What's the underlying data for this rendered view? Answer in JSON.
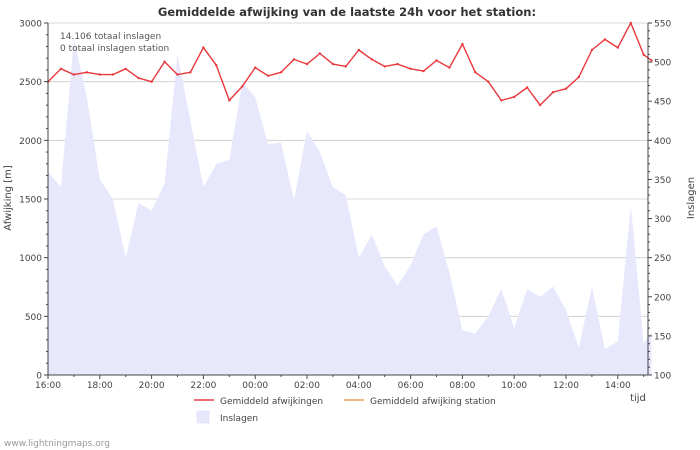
{
  "chart_data": {
    "type": "line",
    "title": "Gemiddelde afwijking van de laatste 24h voor het station:",
    "ylabel": "Afwijking  [m]",
    "y2label": "Inslagen",
    "xlabel": "tijd",
    "ylim": [
      0,
      3000
    ],
    "y2lim": [
      100,
      550
    ],
    "yticks": [
      0,
      500,
      1000,
      1500,
      2000,
      2500,
      3000
    ],
    "y2ticks": [
      100,
      150,
      200,
      250,
      300,
      350,
      400,
      450,
      500,
      550
    ],
    "xticks": [
      "16:00",
      "18:00",
      "20:00",
      "22:00",
      "00:00",
      "02:00",
      "04:00",
      "06:00",
      "08:00",
      "10:00",
      "12:00",
      "14:00"
    ],
    "x_hours_range": [
      0,
      23.3
    ],
    "annotations": [
      "14.106 totaal inslagen",
      "0 totaal inslagen station"
    ],
    "legend": {
      "afwijkingen": "Gemiddeld afwijkingen",
      "station": "Gemiddeld afwijking station",
      "inslagen": "Inslagen"
    },
    "colors": {
      "afwijkingen": "#e8383d",
      "station": "#f0a050",
      "inslagen_fill": "#e8e8fc",
      "grid": "#cccccc",
      "axis": "#444444"
    },
    "series": [
      {
        "name": "Gemiddeld afwijkingen",
        "axis": "left",
        "x": [
          0,
          0.5,
          1,
          1.5,
          2,
          2.5,
          3,
          3.5,
          4,
          4.5,
          5,
          5.5,
          6,
          6.5,
          7,
          7.5,
          8,
          8.5,
          9,
          9.5,
          10,
          10.5,
          11,
          11.5,
          12,
          12.5,
          13,
          13.5,
          14,
          14.5,
          15,
          15.5,
          16,
          16.5,
          17,
          17.5,
          18,
          18.5,
          19,
          19.5,
          20,
          20.5,
          21,
          21.5,
          22,
          22.5,
          23,
          23.3
        ],
        "values": [
          2500,
          2610,
          2560,
          2580,
          2560,
          2560,
          2610,
          2530,
          2500,
          2670,
          2560,
          2580,
          2790,
          2640,
          2340,
          2460,
          2620,
          2550,
          2580,
          2690,
          2650,
          2740,
          2650,
          2630,
          2770,
          2690,
          2630,
          2650,
          2610,
          2590,
          2680,
          2620,
          2820,
          2580,
          2500,
          2340,
          2370,
          2450,
          2300,
          2410,
          2440,
          2540,
          2770,
          2860,
          2790,
          3000,
          2730,
          2680
        ]
      },
      {
        "name": "Gemiddeld afwijking station",
        "axis": "left",
        "x": [],
        "values": []
      },
      {
        "name": "Inslagen",
        "axis": "right",
        "type": "area",
        "x": [
          0,
          0.5,
          1,
          1.5,
          2,
          2.5,
          3,
          3.5,
          4,
          4.5,
          5,
          5.5,
          6,
          6.5,
          7,
          7.5,
          8,
          8.5,
          9,
          9.5,
          10,
          10.5,
          11,
          11.5,
          12,
          12.5,
          13,
          13.5,
          14,
          14.5,
          15,
          15.5,
          16,
          16.5,
          17,
          17.5,
          18,
          18.5,
          19,
          19.5,
          20,
          20.5,
          21,
          21.5,
          22,
          22.5,
          23,
          23.3
        ],
        "values": [
          360,
          340,
          530,
          455,
          350,
          325,
          250,
          320,
          310,
          345,
          510,
          425,
          340,
          370,
          375,
          475,
          455,
          395,
          397,
          323,
          412,
          385,
          340,
          330,
          250,
          280,
          239,
          214,
          240,
          280,
          290,
          231,
          157,
          153,
          175,
          210,
          160,
          210,
          200,
          213,
          183,
          135,
          213,
          133,
          143,
          317,
          140,
          155
        ]
      }
    ]
  },
  "footer": {
    "credit": "www.lightningmaps.org"
  }
}
